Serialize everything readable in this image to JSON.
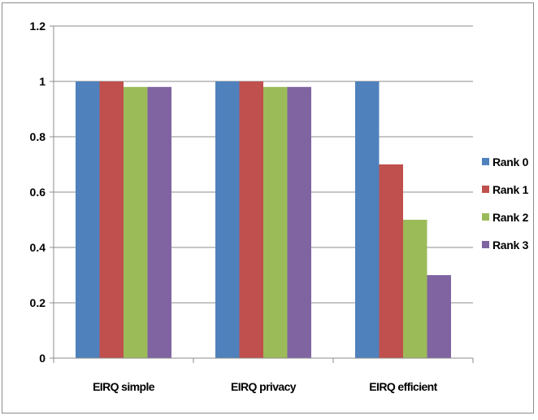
{
  "chart_data": {
    "type": "bar",
    "categories": [
      "EIRQ simple",
      "EIRQ privacy",
      "EIRQ efficient"
    ],
    "series": [
      {
        "name": "Rank 0",
        "color": "#4f81bd",
        "values": [
          1.0,
          1.0,
          1.0
        ]
      },
      {
        "name": "Rank 1",
        "color": "#c0504d",
        "values": [
          1.0,
          1.0,
          0.7
        ]
      },
      {
        "name": "Rank 2",
        "color": "#9bbb59",
        "values": [
          0.98,
          0.98,
          0.5
        ]
      },
      {
        "name": "Rank 3",
        "color": "#8064a2",
        "values": [
          0.98,
          0.98,
          0.3
        ]
      }
    ],
    "ylim": [
      0,
      1.2
    ],
    "yticks": [
      "0",
      "0.2",
      "0.4",
      "0.6",
      "0.8",
      "1",
      "1.2"
    ],
    "grid": true,
    "legend": "right",
    "title": "",
    "xlabel": "",
    "ylabel": ""
  }
}
